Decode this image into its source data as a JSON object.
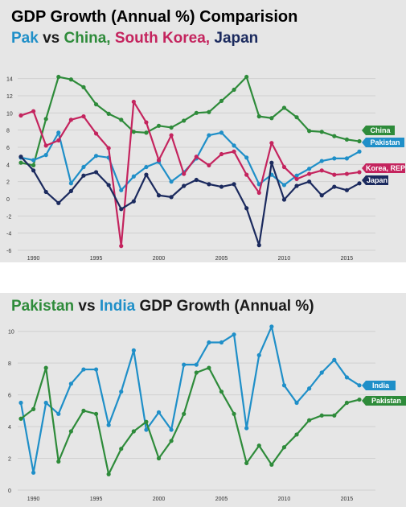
{
  "top_chart": {
    "title": "GDP Growth (Annual %) Comparision",
    "subtitle_parts": [
      {
        "text": "Pak",
        "color": "#1f8fc8"
      },
      {
        "text": " vs ",
        "color": "#1a1a1a"
      },
      {
        "text": "China, ",
        "color": "#2e8b3a"
      },
      {
        "text": "South Korea, ",
        "color": "#c4245e"
      },
      {
        "text": "Japan",
        "color": "#1b2a5e"
      }
    ]
  },
  "bottom_chart": {
    "title_parts": [
      {
        "text": "Pakistan",
        "color": "#2e8b3a"
      },
      {
        "text": " vs ",
        "color": "#1a1a1a"
      },
      {
        "text": "India",
        "color": "#1f8fc8"
      },
      {
        "text": " GDP Growth (Annual %)",
        "color": "#1a1a1a"
      }
    ]
  },
  "chart_data": [
    {
      "type": "line",
      "title": "GDP Growth (Annual %) Comparision",
      "subtitle": "Pak vs China, South Korea, Japan",
      "x": [
        1989,
        1990,
        1991,
        1992,
        1993,
        1994,
        1995,
        1996,
        1997,
        1998,
        1999,
        2000,
        2001,
        2002,
        2003,
        2004,
        2005,
        2006,
        2007,
        2008,
        2009,
        2010,
        2011,
        2012,
        2013,
        2014,
        2015,
        2016
      ],
      "xticks": [
        "1990",
        "1995",
        "2000",
        "2005",
        "2010",
        "2015"
      ],
      "xtick_values": [
        1990,
        1995,
        2000,
        2005,
        2010,
        2015
      ],
      "yticks": [
        "-6",
        "-4",
        "-2",
        "0",
        "2",
        "4",
        "6",
        "8",
        "10",
        "12",
        "14"
      ],
      "ylim": [
        -6,
        15
      ],
      "grid": true,
      "series": [
        {
          "name": "China",
          "color": "#2e8b3a",
          "values": [
            4.2,
            3.9,
            9.3,
            14.2,
            13.9,
            13.0,
            11.0,
            9.9,
            9.2,
            7.8,
            7.7,
            8.5,
            8.3,
            9.1,
            10.0,
            10.1,
            11.4,
            12.7,
            14.2,
            9.6,
            9.4,
            10.6,
            9.5,
            7.9,
            7.8,
            7.3,
            6.9,
            6.7
          ]
        },
        {
          "name": "Pakistan",
          "color": "#1f8fc8",
          "values": [
            4.8,
            4.5,
            5.1,
            7.7,
            1.8,
            3.7,
            5.0,
            4.8,
            1.0,
            2.6,
            3.7,
            4.3,
            2.0,
            3.1,
            4.7,
            7.4,
            7.7,
            6.2,
            4.8,
            1.7,
            2.8,
            1.6,
            2.7,
            3.5,
            4.4,
            4.7,
            4.7,
            5.5
          ]
        },
        {
          "name": "Korea, REP",
          "color": "#c4245e",
          "values": [
            9.7,
            10.2,
            6.2,
            6.8,
            9.2,
            9.6,
            7.6,
            5.9,
            -5.5,
            11.3,
            8.9,
            4.5,
            7.4,
            2.9,
            4.9,
            3.9,
            5.2,
            5.5,
            2.8,
            0.7,
            6.5,
            3.7,
            2.3,
            2.9,
            3.3,
            2.8,
            2.9,
            3.1
          ]
        },
        {
          "name": "Japan",
          "color": "#1b2a5e",
          "values": [
            4.9,
            3.3,
            0.8,
            -0.5,
            0.9,
            2.7,
            3.1,
            1.6,
            -1.2,
            -0.3,
            2.8,
            0.4,
            0.2,
            1.5,
            2.2,
            1.7,
            1.4,
            1.7,
            -1.1,
            -5.4,
            4.2,
            -0.1,
            1.5,
            2.0,
            0.4,
            1.4,
            1.0,
            1.8
          ]
        }
      ]
    },
    {
      "type": "line",
      "title": "Pakistan vs India GDP Growth (Annual %)",
      "x": [
        1989,
        1990,
        1991,
        1992,
        1993,
        1994,
        1995,
        1996,
        1997,
        1998,
        1999,
        2000,
        2001,
        2002,
        2003,
        2004,
        2005,
        2006,
        2007,
        2008,
        2009,
        2010,
        2011,
        2012,
        2013,
        2014,
        2015,
        2016
      ],
      "xticks": [
        "1990",
        "1995",
        "2000",
        "2005",
        "2010",
        "2015"
      ],
      "xtick_values": [
        1990,
        1995,
        2000,
        2005,
        2010,
        2015
      ],
      "yticks": [
        "0",
        "2",
        "4",
        "6",
        "8",
        "10"
      ],
      "ylim": [
        0,
        11
      ],
      "grid": true,
      "series": [
        {
          "name": "India",
          "color": "#1f8fc8",
          "values": [
            5.5,
            1.1,
            5.5,
            4.8,
            6.7,
            7.6,
            7.6,
            4.1,
            6.2,
            8.8,
            3.8,
            4.9,
            3.8,
            7.9,
            7.9,
            9.3,
            9.3,
            9.8,
            3.9,
            8.5,
            10.3,
            6.6,
            5.5,
            6.4,
            7.4,
            8.2,
            7.1,
            6.6
          ]
        },
        {
          "name": "Pakistan",
          "color": "#2e8b3a",
          "values": [
            4.5,
            5.1,
            7.7,
            1.8,
            3.7,
            5.0,
            4.8,
            1.0,
            2.6,
            3.7,
            4.3,
            2.0,
            3.1,
            4.8,
            7.4,
            7.7,
            6.2,
            4.8,
            1.7,
            2.8,
            1.6,
            2.7,
            3.5,
            4.4,
            4.7,
            4.7,
            5.5,
            5.7
          ]
        }
      ]
    }
  ]
}
